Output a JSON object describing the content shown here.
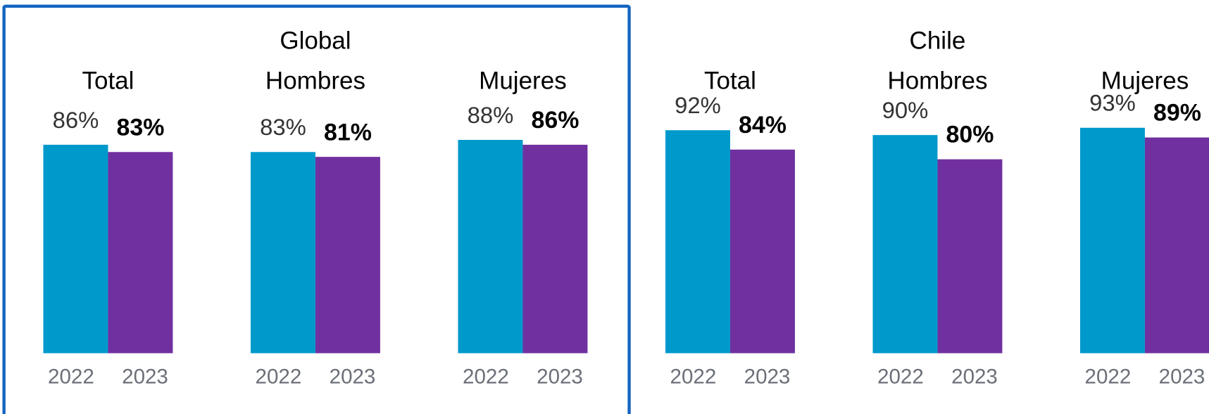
{
  "chart_data": [
    {
      "type": "bar",
      "title": "Global",
      "colors": [
        "#0099cc",
        "#7030a0"
      ],
      "panels": [
        {
          "title": "Total",
          "categories": [
            "2022",
            "2023"
          ],
          "values": [
            86,
            83
          ],
          "value_labels": [
            "86%",
            "83%"
          ]
        },
        {
          "title": "Hombres",
          "categories": [
            "2022",
            "2023"
          ],
          "values": [
            83,
            81
          ],
          "value_labels": [
            "83%",
            "81%"
          ]
        },
        {
          "title": "Mujeres",
          "categories": [
            "2022",
            "2023"
          ],
          "values": [
            88,
            86
          ],
          "value_labels": [
            "88%",
            "86%"
          ]
        }
      ]
    },
    {
      "type": "bar",
      "title": "Chile",
      "colors": [
        "#0099cc",
        "#7030a0"
      ],
      "panels": [
        {
          "title": "Total",
          "categories": [
            "2022",
            "2023"
          ],
          "values": [
            92,
            84
          ],
          "value_labels": [
            "92%",
            "84%"
          ]
        },
        {
          "title": "Hombres",
          "categories": [
            "2022",
            "2023"
          ],
          "values": [
            90,
            80
          ],
          "value_labels": [
            "90%",
            "80%"
          ]
        },
        {
          "title": "Mujeres",
          "categories": [
            "2022",
            "2023"
          ],
          "values": [
            93,
            89
          ],
          "value_labels": [
            "93%",
            "89%"
          ]
        }
      ]
    }
  ]
}
